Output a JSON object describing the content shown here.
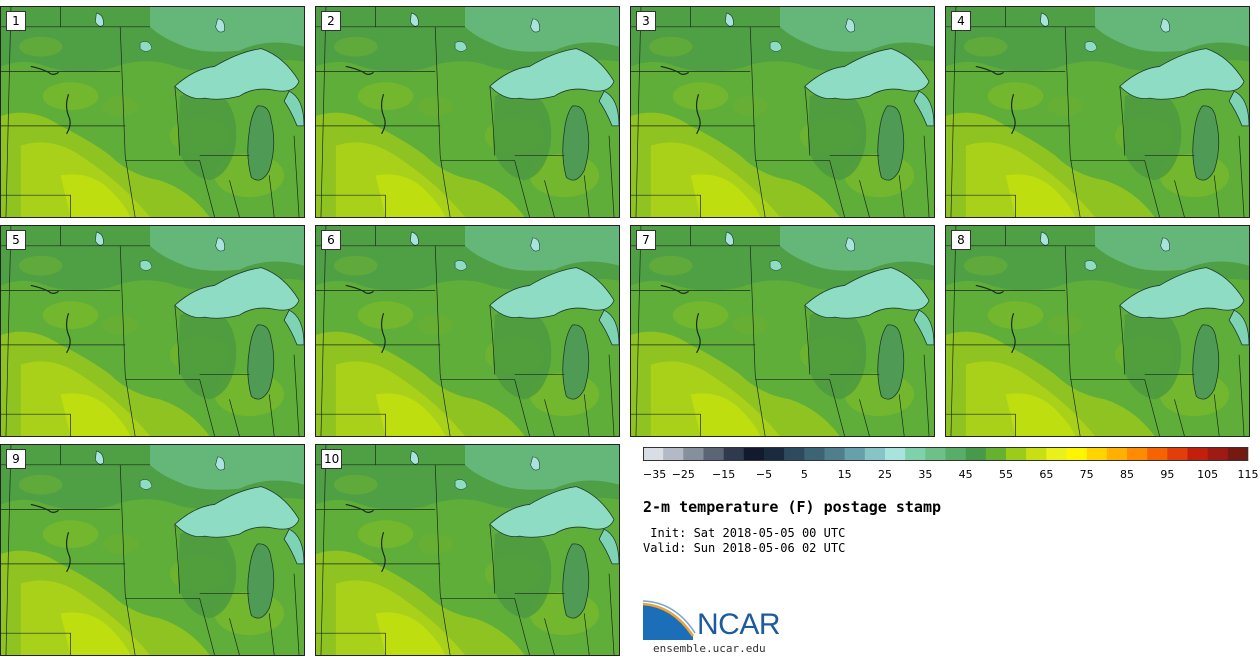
{
  "product": {
    "title": "2-m temperature (F) postage stamp",
    "init_label": " Init: Sat 2018-05-05 00 UTC",
    "valid_label": "Valid: Sun 2018-05-06 02 UTC",
    "logo_text": "NCAR",
    "site": "ensemble.ucar.edu"
  },
  "members": [
    "1",
    "2",
    "3",
    "4",
    "5",
    "6",
    "7",
    "8",
    "9",
    "10"
  ],
  "colorbar": {
    "tick_labels": [
      "−35",
      "−25",
      "−15",
      "−5",
      "5",
      "15",
      "25",
      "35",
      "45",
      "55",
      "65",
      "75",
      "85",
      "95",
      "105",
      "115"
    ],
    "colors": [
      "#d9dee5",
      "#b3bac5",
      "#868f9c",
      "#5c6576",
      "#2f3a4e",
      "#111a2e",
      "#1a2b40",
      "#2d4b5f",
      "#3c6477",
      "#4f7f8f",
      "#66a0aa",
      "#87c4c6",
      "#a8e3dd",
      "#7fd1ab",
      "#6cc088",
      "#58ad67",
      "#469a4a",
      "#66b12f",
      "#9ccc1a",
      "#c8e012",
      "#e9f01a",
      "#fdf600",
      "#ffd400",
      "#ffb000",
      "#ff8c00",
      "#f56400",
      "#e23d0a",
      "#c21f0c",
      "#9e1a12",
      "#741a10"
    ]
  }
}
